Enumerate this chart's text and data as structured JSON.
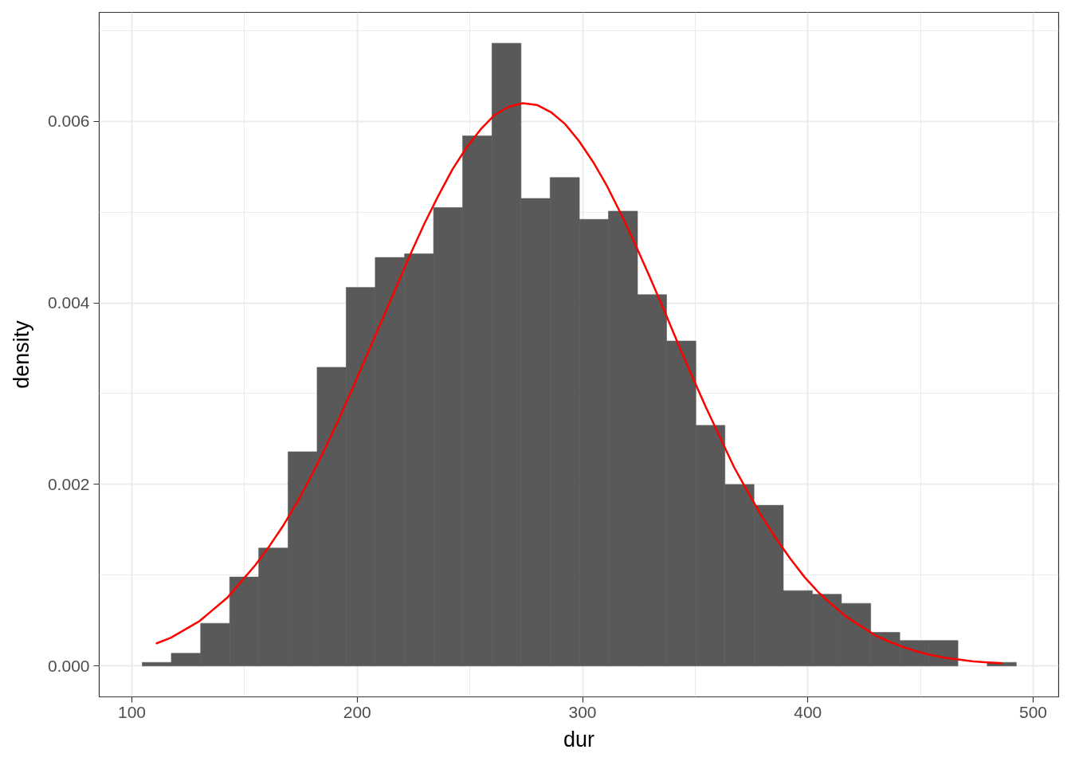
{
  "chart_data": {
    "type": "histogram",
    "xlabel": "dur",
    "ylabel": "density",
    "bins": [
      104.6,
      117.5,
      130.5,
      143.4,
      156.3,
      169.3,
      182.2,
      195.1,
      208.0,
      221.0,
      233.9,
      246.8,
      259.8,
      272.7,
      285.6,
      298.6,
      311.5,
      324.4,
      337.3,
      350.3,
      363.2,
      376.1,
      389.1,
      402.0,
      414.9,
      427.9,
      440.8,
      453.7,
      466.6,
      479.6,
      492.5
    ],
    "series": [
      {
        "color": "#595959",
        "values": [
          4e-05,
          0.00014,
          0.00047,
          0.00098,
          0.0013,
          0.00236,
          0.00329,
          0.00417,
          0.0045,
          0.00454,
          0.00505,
          0.00584,
          0.00686,
          0.00515,
          0.00538,
          0.00492,
          0.00501,
          0.00409,
          0.00358,
          0.00265,
          0.002,
          0.00177,
          0.00083,
          0.00079,
          0.00069,
          0.00037,
          0.00028,
          0.00028,
          0,
          4e-05
        ]
      },
      {
        "type": "line",
        "color": "#ff0000",
        "x": [
          111,
          117.25,
          123.5,
          129.75,
          136,
          142.25,
          148.5,
          154.75,
          161,
          167.25,
          173.5,
          179.75,
          186,
          192.25,
          198.5,
          204.75,
          211,
          217.25,
          223.5,
          229.75,
          236,
          242.25,
          248.5,
          254.75,
          261,
          267.25,
          273.5,
          279.75,
          286,
          292.25,
          298.5,
          304.75,
          311,
          317.25,
          323.5,
          329.75,
          336,
          342.25,
          348.5,
          354.75,
          361,
          367.25,
          373.5,
          379.75,
          386,
          392.25,
          398.5,
          404.75,
          411,
          417.25,
          423.5,
          429.75,
          436,
          442.25,
          448.5,
          454.75,
          461,
          467.25,
          473.5,
          479.75,
          486
        ],
        "values": [
          0.00025,
          0.00031,
          0.0004,
          0.00049,
          0.00062,
          0.00075,
          0.00093,
          0.00111,
          0.00132,
          0.00155,
          0.00181,
          0.0021,
          0.00241,
          0.00274,
          0.00309,
          0.00345,
          0.00381,
          0.00417,
          0.00453,
          0.00487,
          0.00518,
          0.00547,
          0.00571,
          0.00591,
          0.00607,
          0.00616,
          0.0062,
          0.00618,
          0.0061,
          0.00597,
          0.00578,
          0.00555,
          0.00528,
          0.00497,
          0.00464,
          0.00429,
          0.00393,
          0.00356,
          0.0032,
          0.00285,
          0.00252,
          0.00219,
          0.00191,
          0.00164,
          0.0014,
          0.00118,
          0.00098,
          0.00081,
          0.00067,
          0.00054,
          0.00044,
          0.00034,
          0.00027,
          0.00021,
          0.00016,
          0.00012,
          9e-05,
          7e-05,
          5e-05,
          4e-05,
          3e-05
        ]
      }
    ],
    "xlim": [
      85.5,
      511.3
    ],
    "ylim": [
      -0.00034,
      0.0072
    ],
    "xticks": [
      100,
      200,
      300,
      400,
      500
    ],
    "yticks": [
      {
        "value": 0,
        "label": "0.000"
      },
      0.002,
      0.004,
      0.006
    ],
    "grid": true
  }
}
